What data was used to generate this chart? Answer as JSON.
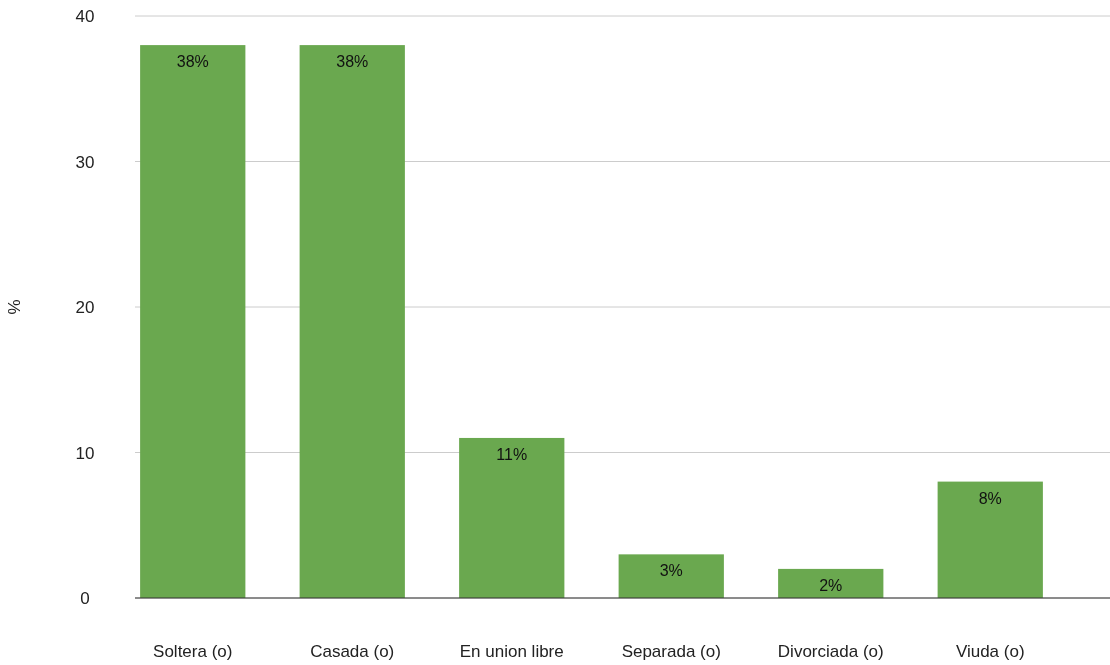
{
  "chart_data": {
    "type": "bar",
    "ylabel": "%",
    "categories": [
      "Soltera (o)",
      "Casada (o)",
      "En union libre",
      "Separada (o)",
      "Divorciada (o)",
      "Viuda (o)"
    ],
    "values": [
      38,
      38,
      11,
      3,
      2,
      8
    ],
    "value_labels": [
      "38%",
      "38%",
      "11%",
      "3%",
      "2%",
      "8%"
    ],
    "color": "#6aa84f",
    "ylim": [
      0,
      40
    ],
    "yticks": [
      0,
      10,
      20,
      30,
      40
    ],
    "grid": "y"
  }
}
